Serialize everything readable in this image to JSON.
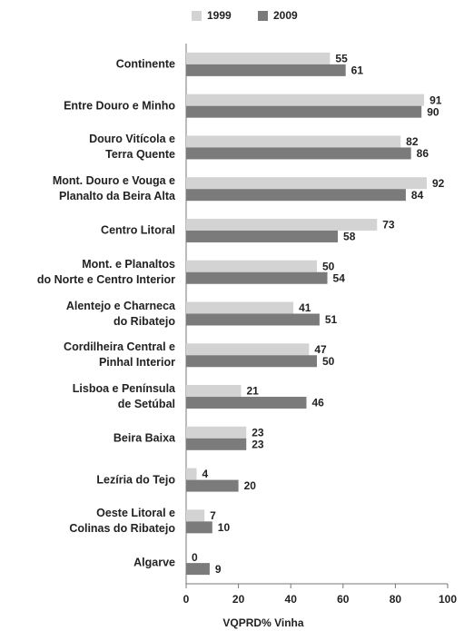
{
  "chart_data": {
    "type": "hbar",
    "xlabel": "VQPRD% Vinha",
    "categories": [
      "Continente",
      "Entre Douro e Minho",
      "Douro Vitícola e\nTerra Quente",
      "Mont. Douro e Vouga e\nPlanalto da Beira Alta",
      "Centro Litoral",
      "Mont. e Planaltos\ndo Norte e Centro Interior",
      "Alentejo e Charneca\ndo Ribatejo",
      "Cordilheira Central e\nPinhal Interior",
      "Lisboa e Península\nde Setúbal",
      "Beira  Baixa",
      "Lezíria do Tejo",
      "Oeste Litoral e\nColinas do Ribatejo",
      "Algarve"
    ],
    "series": [
      {
        "name": "1999",
        "color": "#d3d3d3",
        "values": [
          55,
          91,
          82,
          92,
          73,
          50,
          41,
          47,
          21,
          23,
          4,
          7,
          0
        ]
      },
      {
        "name": "2009",
        "color": "#7b7b7b",
        "values": [
          61,
          90,
          86,
          84,
          58,
          54,
          51,
          50,
          46,
          23,
          20,
          10,
          9
        ]
      }
    ],
    "xlim": [
      0,
      100
    ],
    "xticks": [
      0,
      20,
      40,
      60,
      80,
      100
    ],
    "grid": false,
    "legend": "top"
  }
}
